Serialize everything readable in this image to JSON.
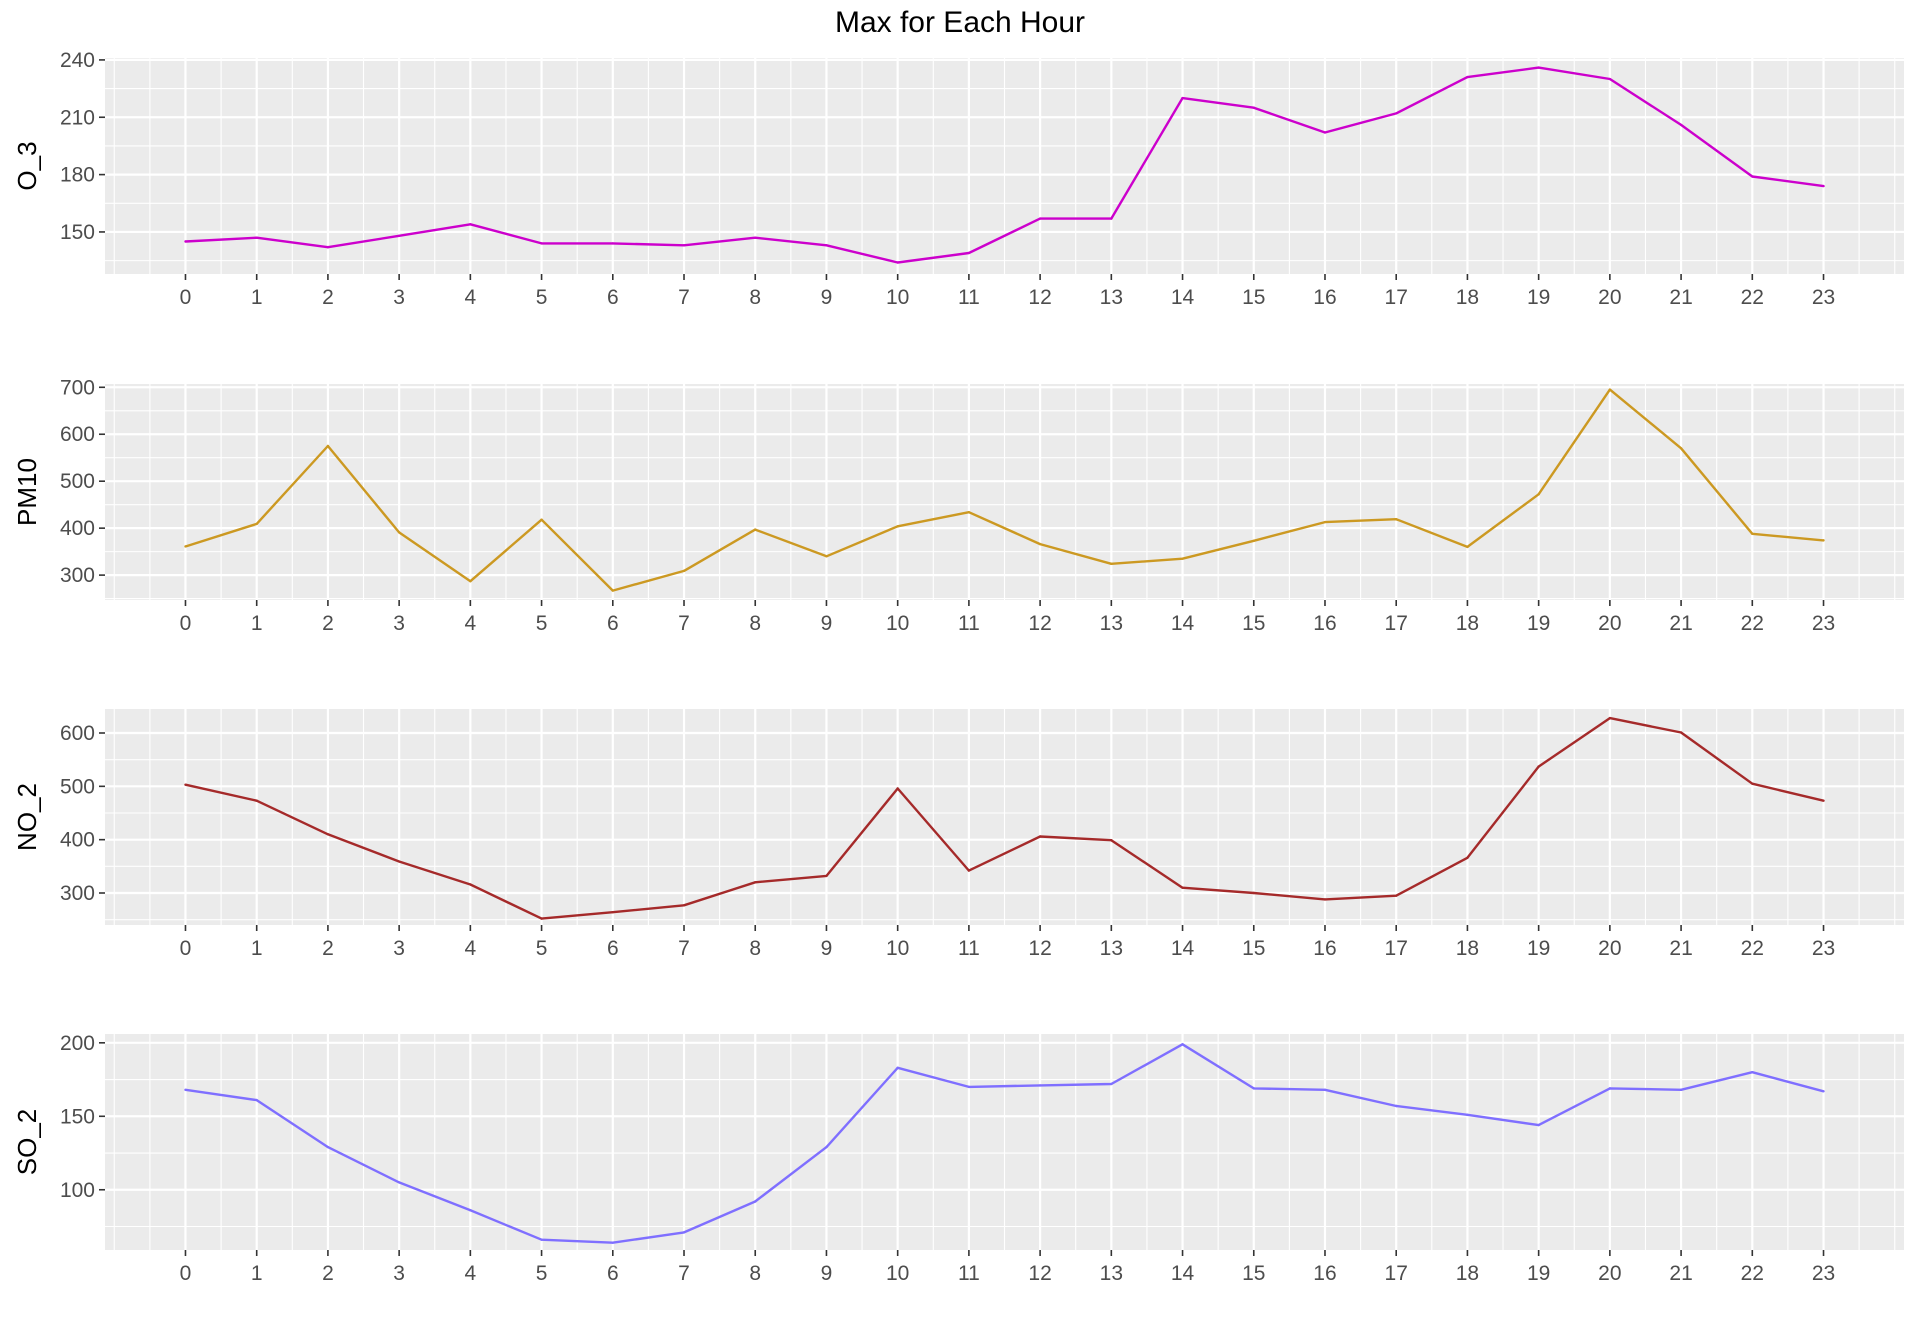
{
  "chart_data": {
    "type": "line",
    "title": "Max for Each Hour",
    "xlabel": "",
    "x": [
      0,
      1,
      2,
      3,
      4,
      5,
      6,
      7,
      8,
      9,
      10,
      11,
      12,
      13,
      14,
      15,
      16,
      17,
      18,
      19,
      20,
      21,
      22,
      23
    ],
    "x_tick_labels": [
      "0",
      "1",
      "2",
      "3",
      "4",
      "5",
      "6",
      "7",
      "8",
      "9",
      "10",
      "11",
      "12",
      "13",
      "14",
      "15",
      "16",
      "17",
      "18",
      "19",
      "20",
      "21",
      "22",
      "23"
    ],
    "grid": true,
    "panels": [
      {
        "ylabel": "O_3",
        "color": "#CC00CC",
        "ylim": [
          128,
          241
        ],
        "yticks": [
          150,
          180,
          210,
          240
        ],
        "y_tick_labels": [
          "150",
          "180",
          "210",
          "240"
        ],
        "values": [
          145,
          147,
          142,
          148,
          154,
          144,
          144,
          143,
          147,
          143,
          134,
          139,
          157,
          157,
          220,
          215,
          202,
          212,
          231,
          236,
          230,
          206,
          179,
          174
        ]
      },
      {
        "ylabel": "PM10",
        "color": "#CC9922",
        "ylim": [
          247,
          707
        ],
        "yticks": [
          300,
          400,
          500,
          600,
          700
        ],
        "y_tick_labels": [
          "300",
          "400",
          "500",
          "600",
          "700"
        ],
        "values": [
          361,
          409,
          575,
          391,
          287,
          418,
          267,
          309,
          397,
          340,
          404,
          434,
          366,
          324,
          335,
          373,
          413,
          419,
          360,
          472,
          695,
          570,
          388,
          374
        ]
      },
      {
        "ylabel": "NO_2",
        "color": "#A52A2A",
        "ylim": [
          240,
          645
        ],
        "yticks": [
          300,
          400,
          500,
          600
        ],
        "y_tick_labels": [
          "300",
          "400",
          "500",
          "600"
        ],
        "values": [
          503,
          473,
          410,
          359,
          316,
          252,
          264,
          277,
          320,
          332,
          496,
          342,
          406,
          399,
          310,
          300,
          288,
          295,
          366,
          537,
          628,
          601,
          505,
          473
        ]
      },
      {
        "ylabel": "SO_2",
        "color": "#7F6FFF",
        "ylim": [
          59,
          206
        ],
        "yticks": [
          100,
          150,
          200
        ],
        "y_tick_labels": [
          "100",
          "150",
          "200"
        ],
        "values": [
          168,
          161,
          129,
          105,
          86,
          66,
          64,
          71,
          92,
          129,
          183,
          170,
          171,
          172,
          199,
          169,
          168,
          157,
          151,
          144,
          169,
          168,
          180,
          167
        ]
      }
    ]
  }
}
